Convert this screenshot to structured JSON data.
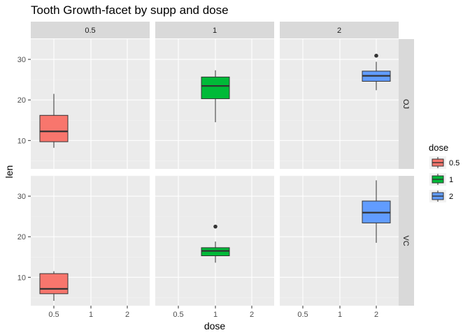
{
  "chart_data": {
    "type": "boxplot",
    "title": "Tooth Growth-facet by supp and dose",
    "xlabel": "dose",
    "ylabel": "len",
    "ylim": [
      3,
      35
    ],
    "y_ticks": [
      10,
      20,
      30
    ],
    "x_categories": [
      "0.5",
      "1",
      "2"
    ],
    "col_facets": [
      "0.5",
      "1",
      "2"
    ],
    "row_facets": [
      "OJ",
      "VC"
    ],
    "grid": true,
    "legend": {
      "title": "dose",
      "position": "right",
      "items": [
        {
          "label": "0.5",
          "color": "#F8766D"
        },
        {
          "label": "1",
          "color": "#00BA38"
        },
        {
          "label": "2",
          "color": "#619CFF"
        }
      ]
    },
    "boxes": [
      {
        "row": "OJ",
        "col": "0.5",
        "x": "0.5",
        "min": 8.2,
        "q1": 9.7,
        "median": 12.25,
        "q3": 16.2,
        "max": 21.5,
        "outliers": []
      },
      {
        "row": "OJ",
        "col": "1",
        "x": "1",
        "min": 14.5,
        "q1": 20.3,
        "median": 23.45,
        "q3": 25.65,
        "max": 27.3,
        "outliers": []
      },
      {
        "row": "OJ",
        "col": "2",
        "x": "2",
        "min": 22.4,
        "q1": 24.6,
        "median": 25.95,
        "q3": 27.1,
        "max": 29.4,
        "outliers": [
          30.9
        ]
      },
      {
        "row": "VC",
        "col": "0.5",
        "x": "0.5",
        "min": 4.2,
        "q1": 5.95,
        "median": 7.15,
        "q3": 10.9,
        "max": 11.5,
        "outliers": []
      },
      {
        "row": "VC",
        "col": "1",
        "x": "1",
        "min": 13.6,
        "q1": 15.3,
        "median": 16.5,
        "q3": 17.3,
        "max": 18.8,
        "outliers": [
          22.5
        ]
      },
      {
        "row": "VC",
        "col": "2",
        "x": "2",
        "min": 18.5,
        "q1": 23.4,
        "median": 25.95,
        "q3": 28.8,
        "max": 33.9,
        "outliers": []
      }
    ]
  }
}
